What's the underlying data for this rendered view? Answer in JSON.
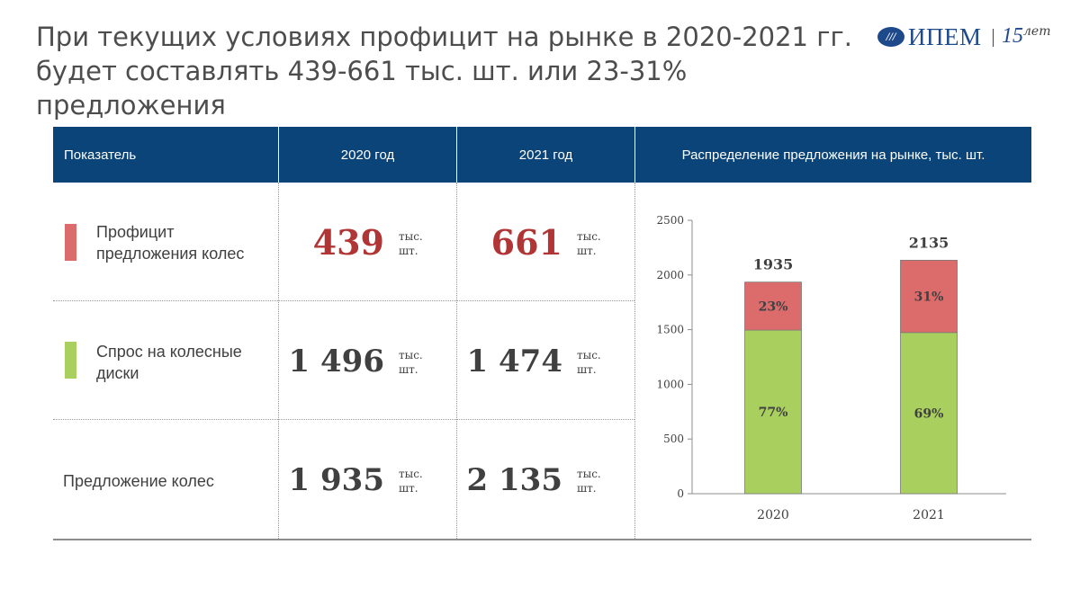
{
  "title": "При текущих условиях профицит на рынке в 2020-2021 гг. будет составлять 439-661 тыс. шт. или 23-31% предложения",
  "logo": {
    "emblem": "///",
    "name": "ИПЕМ",
    "years_num": "15",
    "years_unit": "лет"
  },
  "table": {
    "headers": [
      "Показатель",
      "2020 год",
      "2021 год",
      "Распределение предложения на рынке, тыс. шт."
    ],
    "unit_line1": "тыс.",
    "unit_line2": "шт.",
    "rows": [
      {
        "label": "Профицит предложения колес",
        "color": "#dc6b6b",
        "v2020": "439",
        "v2021": "661"
      },
      {
        "label": "Спрос на колесные диски",
        "color": "#a9cf5e",
        "v2020": "1 496",
        "v2021": "1 474"
      },
      {
        "label": "Предложение колес",
        "color": "",
        "v2020": "1 935",
        "v2021": "2 135"
      }
    ]
  },
  "chart_data": {
    "type": "bar",
    "stacked": true,
    "categories": [
      "2020",
      "2021"
    ],
    "series": [
      {
        "name": "Спрос на колесные диски",
        "values": [
          1496,
          1474
        ],
        "labels": [
          "77%",
          "69%"
        ],
        "color": "#a9cf5e"
      },
      {
        "name": "Профицит предложения колес",
        "values": [
          439,
          661
        ],
        "labels": [
          "23%",
          "31%"
        ],
        "color": "#dc6b6b"
      }
    ],
    "totals": [
      1935,
      2135
    ],
    "yticks": [
      "0",
      "500",
      "1000",
      "1500",
      "2000",
      "2500"
    ],
    "ylim": [
      0,
      2500
    ]
  }
}
